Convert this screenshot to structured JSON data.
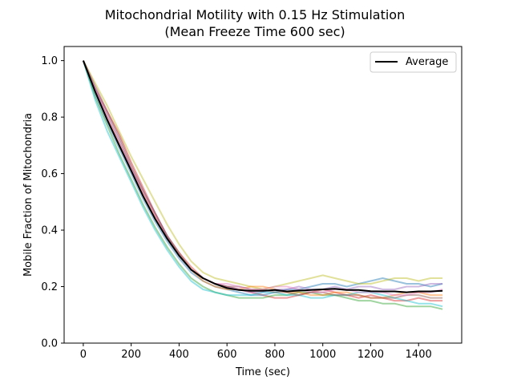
{
  "chart_data": {
    "type": "line",
    "title": "Mitochondrial Motility with 0.15 Hz Stimulation",
    "subtitle": "(Mean Freeze Time 600 sec)",
    "xlabel": "Time (sec)",
    "ylabel": "Mobile Fraction of Mitochondria",
    "xlim": [
      -80,
      1580
    ],
    "ylim": [
      0.0,
      1.05
    ],
    "x_ticks": [
      0,
      200,
      400,
      600,
      800,
      1000,
      1200,
      1400
    ],
    "y_ticks": [
      0.0,
      0.2,
      0.4,
      0.6,
      0.8,
      1.0
    ],
    "x_tick_labels": [
      "0",
      "200",
      "400",
      "600",
      "800",
      "1000",
      "1200",
      "1400"
    ],
    "y_tick_labels": [
      "0.0",
      "0.2",
      "0.4",
      "0.6",
      "0.8",
      "1.0"
    ],
    "grid": false,
    "legend": {
      "position": "top-right",
      "entries": [
        "Average"
      ]
    },
    "series": [
      {
        "name": "Average",
        "color": "#000000",
        "x": [
          0,
          50,
          100,
          150,
          200,
          250,
          300,
          350,
          400,
          450,
          500,
          550,
          600,
          650,
          700,
          750,
          800,
          850,
          900,
          950,
          1000,
          1050,
          1100,
          1150,
          1200,
          1250,
          1300,
          1350,
          1400,
          1450,
          1500
        ],
        "values": [
          1.0,
          0.89,
          0.79,
          0.7,
          0.61,
          0.52,
          0.44,
          0.37,
          0.31,
          0.26,
          0.23,
          0.21,
          0.195,
          0.188,
          0.185,
          0.185,
          0.188,
          0.183,
          0.186,
          0.188,
          0.19,
          0.192,
          0.188,
          0.188,
          0.184,
          0.183,
          0.183,
          0.18,
          0.183,
          0.183,
          0.185
        ]
      },
      {
        "color": "#d62728",
        "x": [
          0,
          50,
          100,
          150,
          200,
          250,
          300,
          350,
          400,
          450,
          500,
          550,
          600,
          650,
          700,
          750,
          800,
          850,
          900,
          950,
          1000,
          1050,
          1100,
          1150,
          1200,
          1250,
          1300,
          1350,
          1400,
          1450,
          1500
        ],
        "values": [
          1.0,
          0.9,
          0.82,
          0.74,
          0.64,
          0.55,
          0.46,
          0.38,
          0.32,
          0.27,
          0.23,
          0.21,
          0.2,
          0.19,
          0.18,
          0.17,
          0.16,
          0.16,
          0.17,
          0.18,
          0.19,
          0.18,
          0.17,
          0.16,
          0.17,
          0.16,
          0.15,
          0.15,
          0.16,
          0.15,
          0.15
        ]
      },
      {
        "color": "#1f77b4",
        "x": [
          0,
          50,
          100,
          150,
          200,
          250,
          300,
          350,
          400,
          450,
          500,
          550,
          600,
          650,
          700,
          750,
          800,
          850,
          900,
          950,
          1000,
          1050,
          1100,
          1150,
          1200,
          1250,
          1300,
          1350,
          1400,
          1450,
          1500
        ],
        "values": [
          1.0,
          0.88,
          0.78,
          0.69,
          0.6,
          0.51,
          0.43,
          0.36,
          0.3,
          0.25,
          0.22,
          0.2,
          0.19,
          0.18,
          0.17,
          0.17,
          0.18,
          0.19,
          0.19,
          0.2,
          0.21,
          0.21,
          0.2,
          0.21,
          0.22,
          0.23,
          0.22,
          0.21,
          0.21,
          0.2,
          0.21
        ]
      },
      {
        "color": "#2ca02c",
        "x": [
          0,
          50,
          100,
          150,
          200,
          250,
          300,
          350,
          400,
          450,
          500,
          550,
          600,
          650,
          700,
          750,
          800,
          850,
          900,
          950,
          1000,
          1050,
          1100,
          1150,
          1200,
          1250,
          1300,
          1350,
          1400,
          1450,
          1500
        ],
        "values": [
          1.0,
          0.87,
          0.77,
          0.67,
          0.58,
          0.49,
          0.41,
          0.34,
          0.28,
          0.23,
          0.2,
          0.18,
          0.17,
          0.16,
          0.16,
          0.16,
          0.17,
          0.17,
          0.18,
          0.18,
          0.17,
          0.17,
          0.16,
          0.15,
          0.15,
          0.14,
          0.14,
          0.13,
          0.13,
          0.13,
          0.12
        ]
      },
      {
        "color": "#bcbd22",
        "x": [
          0,
          50,
          100,
          150,
          200,
          250,
          300,
          350,
          400,
          450,
          500,
          550,
          600,
          650,
          700,
          750,
          800,
          850,
          900,
          950,
          1000,
          1050,
          1100,
          1150,
          1200,
          1250,
          1300,
          1350,
          1400,
          1450,
          1500
        ],
        "values": [
          1.0,
          0.92,
          0.84,
          0.75,
          0.66,
          0.58,
          0.5,
          0.42,
          0.35,
          0.29,
          0.25,
          0.23,
          0.22,
          0.21,
          0.2,
          0.19,
          0.2,
          0.21,
          0.22,
          0.23,
          0.24,
          0.23,
          0.22,
          0.21,
          0.21,
          0.22,
          0.23,
          0.23,
          0.22,
          0.23,
          0.23
        ]
      },
      {
        "color": "#ff7f0e",
        "x": [
          0,
          50,
          100,
          150,
          200,
          250,
          300,
          350,
          400,
          450,
          500,
          550,
          600,
          650,
          700,
          750,
          800,
          850,
          900,
          950,
          1000,
          1050,
          1100,
          1150,
          1200,
          1250,
          1300,
          1350,
          1400,
          1450,
          1500
        ],
        "values": [
          1.0,
          0.89,
          0.8,
          0.71,
          0.62,
          0.53,
          0.45,
          0.37,
          0.31,
          0.26,
          0.22,
          0.2,
          0.19,
          0.19,
          0.2,
          0.2,
          0.19,
          0.18,
          0.18,
          0.17,
          0.17,
          0.18,
          0.18,
          0.17,
          0.16,
          0.16,
          0.17,
          0.18,
          0.18,
          0.17,
          0.17
        ]
      },
      {
        "color": "#9467bd",
        "x": [
          0,
          50,
          100,
          150,
          200,
          250,
          300,
          350,
          400,
          450,
          500,
          550,
          600,
          650,
          700,
          750,
          800,
          850,
          900,
          950,
          1000,
          1050,
          1100,
          1150,
          1200,
          1250,
          1300,
          1350,
          1400,
          1450,
          1500
        ],
        "values": [
          1.0,
          0.9,
          0.81,
          0.72,
          0.62,
          0.54,
          0.46,
          0.38,
          0.31,
          0.26,
          0.23,
          0.21,
          0.2,
          0.19,
          0.18,
          0.18,
          0.19,
          0.19,
          0.2,
          0.19,
          0.19,
          0.2,
          0.19,
          0.2,
          0.2,
          0.19,
          0.19,
          0.2,
          0.2,
          0.21,
          0.21
        ]
      },
      {
        "color": "#17becf",
        "x": [
          0,
          50,
          100,
          150,
          200,
          250,
          300,
          350,
          400,
          450,
          500,
          550,
          600,
          650,
          700,
          750,
          800,
          850,
          900,
          950,
          1000,
          1050,
          1100,
          1150,
          1200,
          1250,
          1300,
          1350,
          1400,
          1450,
          1500
        ],
        "values": [
          1.0,
          0.86,
          0.75,
          0.66,
          0.57,
          0.48,
          0.4,
          0.33,
          0.27,
          0.22,
          0.19,
          0.18,
          0.17,
          0.17,
          0.17,
          0.18,
          0.18,
          0.17,
          0.17,
          0.16,
          0.16,
          0.17,
          0.17,
          0.18,
          0.18,
          0.17,
          0.16,
          0.15,
          0.14,
          0.14,
          0.13
        ]
      },
      {
        "color": "#8c564b",
        "x": [
          0,
          50,
          100,
          150,
          200,
          250,
          300,
          350,
          400,
          450,
          500,
          550,
          600,
          650,
          700,
          750,
          800,
          850,
          900,
          950,
          1000,
          1050,
          1100,
          1150,
          1200,
          1250,
          1300,
          1350,
          1400,
          1450,
          1500
        ],
        "values": [
          1.0,
          0.91,
          0.82,
          0.73,
          0.63,
          0.54,
          0.46,
          0.38,
          0.32,
          0.26,
          0.23,
          0.21,
          0.2,
          0.2,
          0.19,
          0.19,
          0.18,
          0.18,
          0.17,
          0.18,
          0.18,
          0.17,
          0.17,
          0.17,
          0.16,
          0.16,
          0.16,
          0.17,
          0.17,
          0.16,
          0.16
        ]
      },
      {
        "color": "#e377c2",
        "x": [
          0,
          50,
          100,
          150,
          200,
          250,
          300,
          350,
          400,
          450,
          500,
          550,
          600,
          650,
          700,
          750,
          800,
          850,
          900,
          950,
          1000,
          1050,
          1100,
          1150,
          1200,
          1250,
          1300,
          1350,
          1400,
          1450,
          1500
        ],
        "values": [
          1.0,
          0.9,
          0.8,
          0.71,
          0.62,
          0.53,
          0.45,
          0.37,
          0.31,
          0.26,
          0.23,
          0.21,
          0.21,
          0.2,
          0.19,
          0.19,
          0.2,
          0.2,
          0.19,
          0.18,
          0.18,
          0.19,
          0.19,
          0.18,
          0.18,
          0.18,
          0.17,
          0.17,
          0.18,
          0.18,
          0.19
        ]
      }
    ]
  }
}
